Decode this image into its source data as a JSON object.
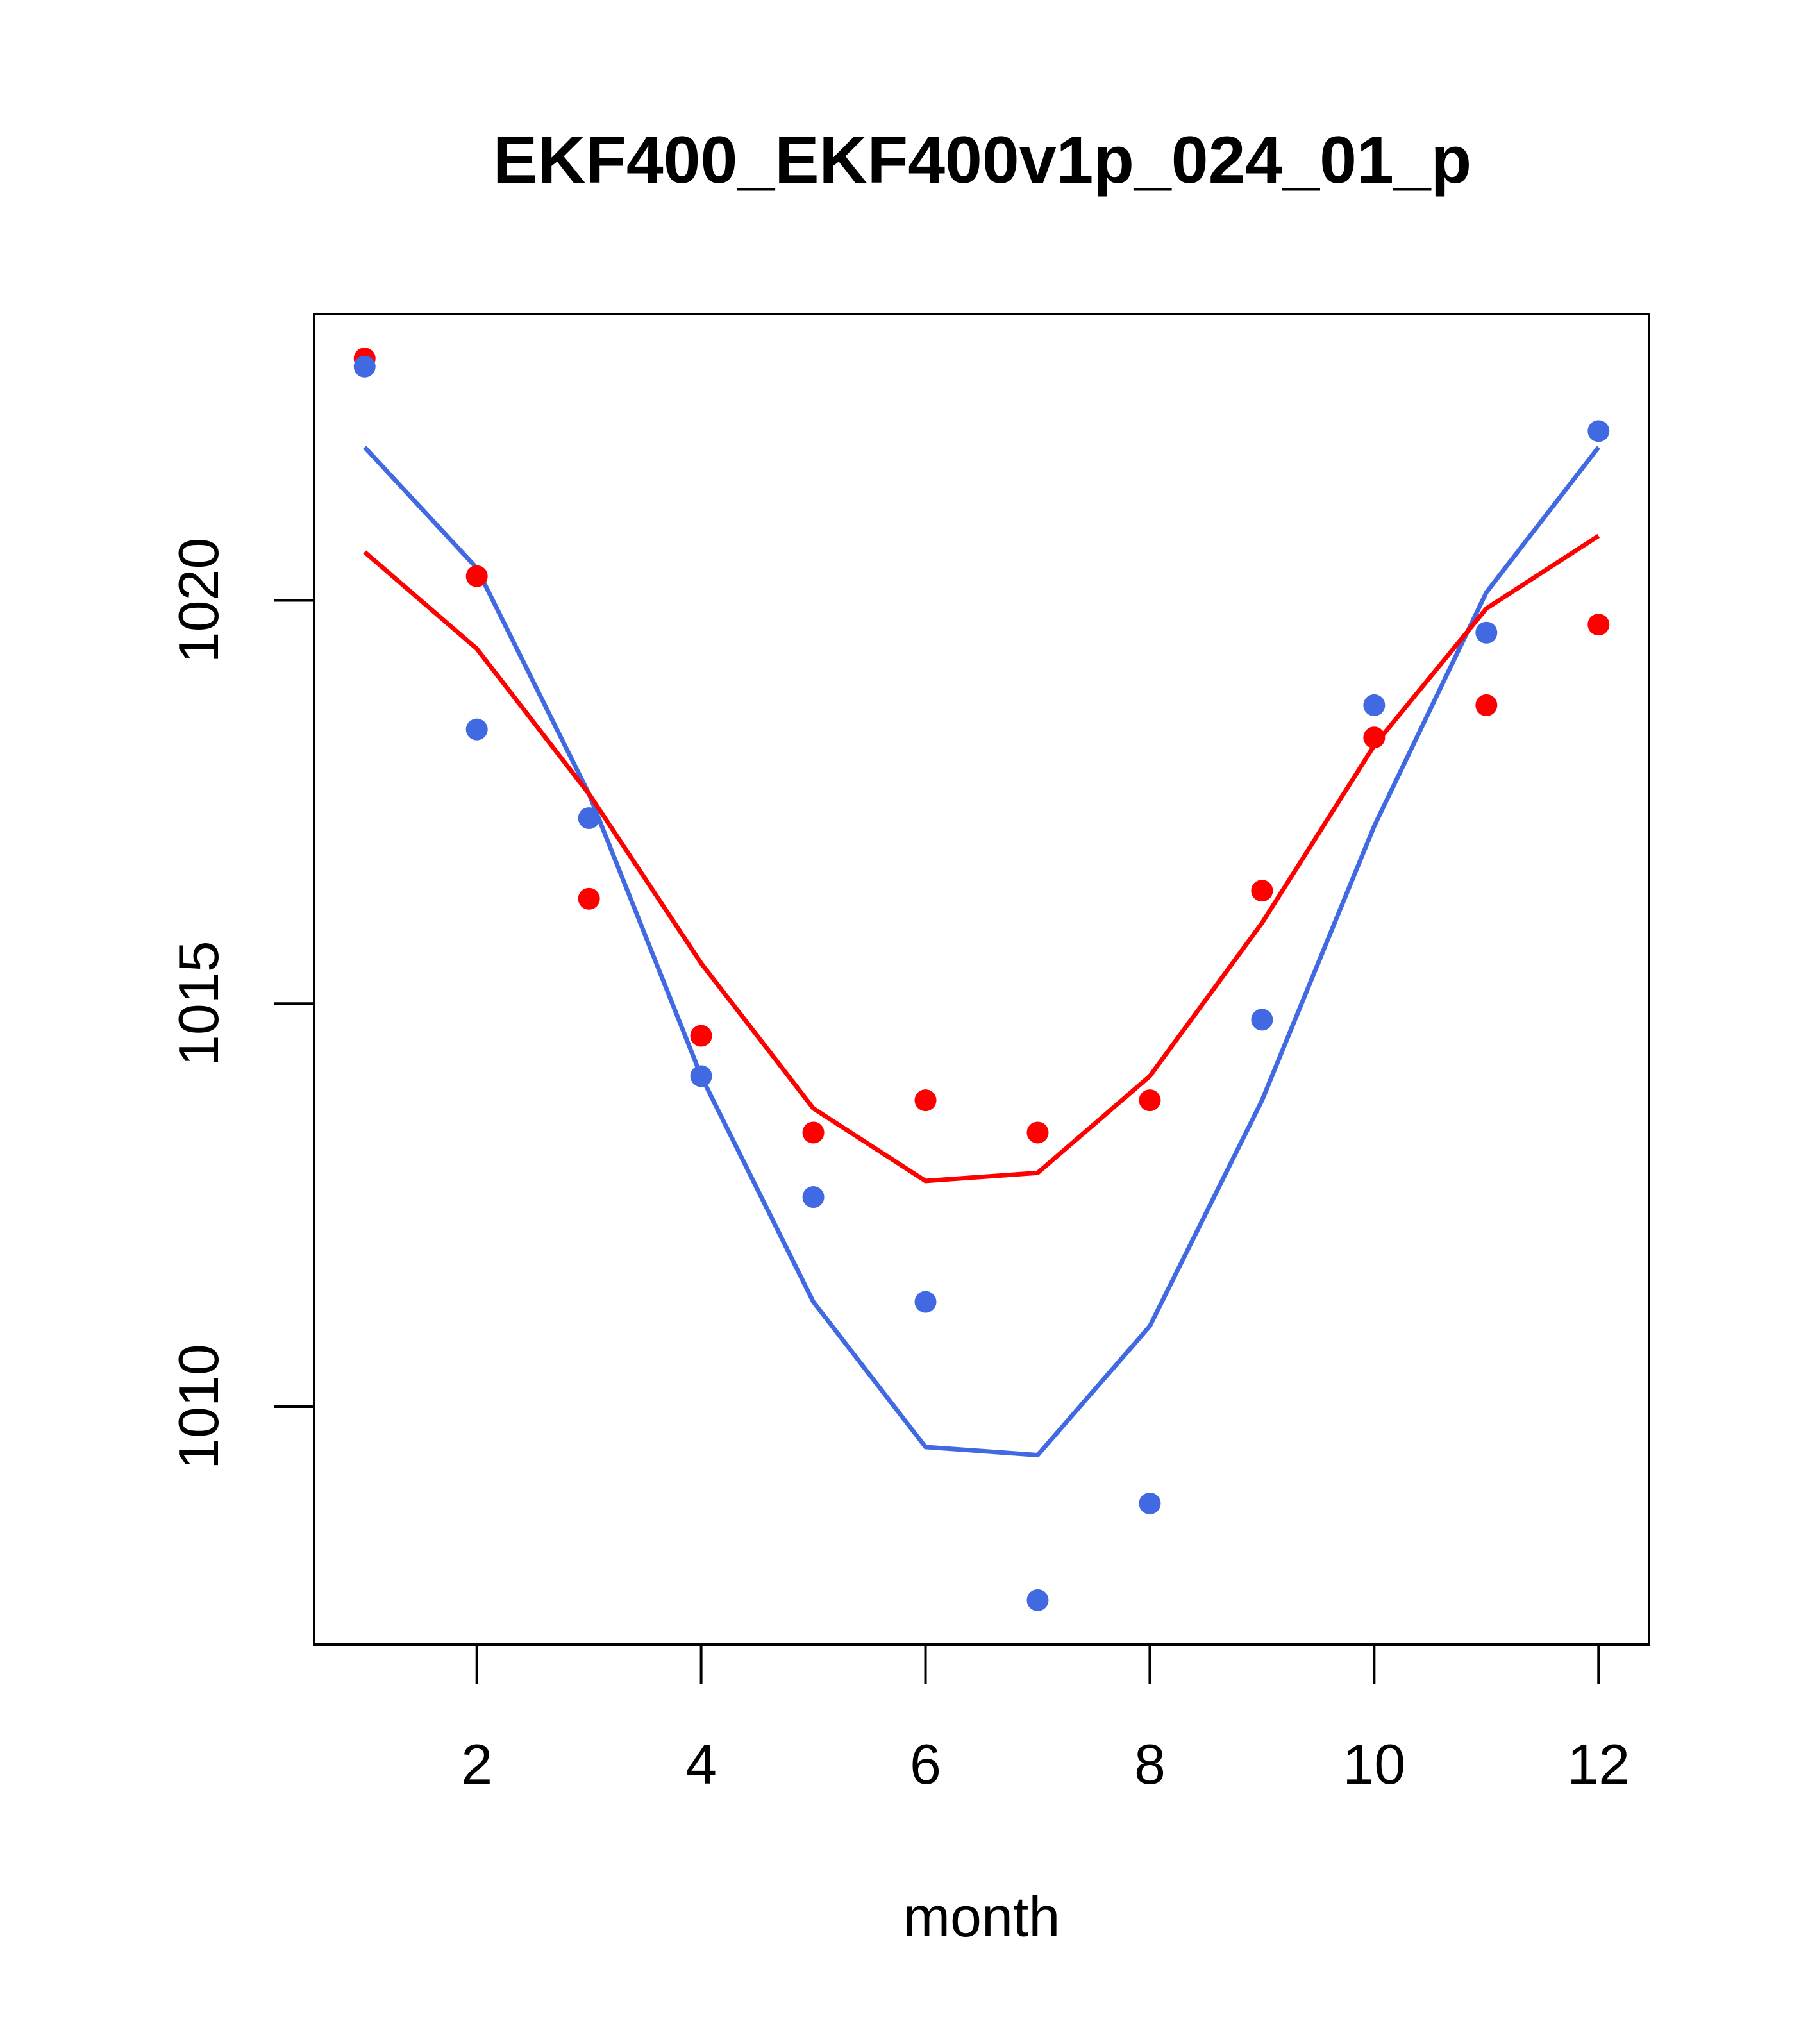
{
  "chart_data": {
    "type": "line",
    "title": "EKF400_EKF400v1p_024_01_p",
    "xlabel": "month",
    "ylabel": "",
    "xlim": [
      0.55,
      12.45
    ],
    "ylim": [
      1007.05,
      1023.55
    ],
    "x_ticks": [
      2,
      4,
      6,
      8,
      10,
      12
    ],
    "y_ticks": [
      1010,
      1015,
      1020
    ],
    "x": [
      1,
      2,
      3,
      4,
      5,
      6,
      7,
      8,
      9,
      10,
      11,
      12
    ],
    "series": [
      {
        "name": "red",
        "color": "#ff0000",
        "points": [
          1023.0,
          1020.3,
          1016.3,
          1014.6,
          1013.4,
          1013.8,
          1013.4,
          1013.8,
          1016.4,
          1018.3,
          1018.7,
          1019.7
        ],
        "line": [
          1020.6,
          1019.4,
          1017.6,
          1015.5,
          1013.7,
          1012.8,
          1012.9,
          1014.1,
          1016.0,
          1018.2,
          1019.9,
          1020.8
        ]
      },
      {
        "name": "blue",
        "color": "#4169e1",
        "points": [
          1022.9,
          1018.4,
          1017.3,
          1014.1,
          1012.6,
          1011.3,
          1007.6,
          1008.8,
          1014.8,
          1018.7,
          1019.6,
          1022.1
        ],
        "line": [
          1021.9,
          1020.4,
          1017.6,
          1014.1,
          1011.3,
          1009.5,
          1009.4,
          1011.0,
          1013.8,
          1017.2,
          1020.1,
          1021.9
        ]
      }
    ]
  }
}
